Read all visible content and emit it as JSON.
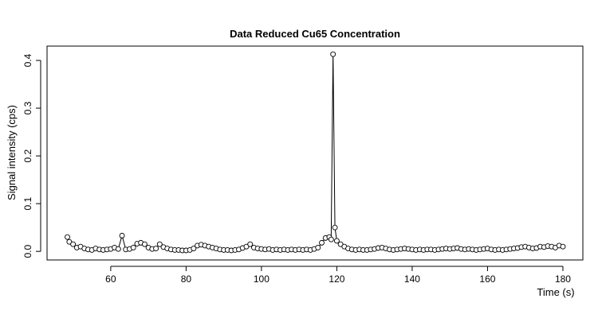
{
  "chart_data": {
    "type": "line",
    "title": "Data Reduced Cu65 Concentration",
    "x_label": "Time (s)",
    "y_label": "Signal intensity (cps)",
    "color": "#000000",
    "x": [
      48.5,
      49,
      50,
      51,
      52,
      53,
      54,
      55,
      56,
      57,
      58,
      59,
      60,
      61,
      62,
      63,
      64,
      65,
      66,
      67,
      68,
      69,
      70,
      71,
      72,
      73,
      74,
      75,
      76,
      77,
      78,
      79,
      80,
      81,
      82,
      83,
      84,
      85,
      86,
      87,
      88,
      89,
      90,
      91,
      92,
      93,
      94,
      95,
      96,
      97,
      98,
      99,
      100,
      101,
      102,
      103,
      104,
      105,
      106,
      107,
      108,
      109,
      110,
      111,
      112,
      113,
      114,
      115,
      116,
      117,
      118,
      118.5,
      119,
      119.5,
      120,
      121,
      122,
      123,
      124,
      125,
      126,
      127,
      128,
      129,
      130,
      131,
      132,
      133,
      134,
      135,
      136,
      137,
      138,
      139,
      140,
      141,
      142,
      143,
      144,
      145,
      146,
      147,
      148,
      149,
      150,
      151,
      152,
      153,
      154,
      155,
      156,
      157,
      158,
      159,
      160,
      161,
      162,
      163,
      164,
      165,
      166,
      167,
      168,
      169,
      170,
      171,
      172,
      173,
      174,
      175,
      176,
      177,
      178,
      179,
      180
    ],
    "values": [
      0.03,
      0.02,
      0.015,
      0.008,
      0.01,
      0.006,
      0.004,
      0.003,
      0.006,
      0.004,
      0.003,
      0.004,
      0.005,
      0.008,
      0.005,
      0.033,
      0.004,
      0.005,
      0.008,
      0.016,
      0.018,
      0.015,
      0.008,
      0.005,
      0.006,
      0.015,
      0.009,
      0.006,
      0.004,
      0.003,
      0.003,
      0.002,
      0.002,
      0.003,
      0.006,
      0.012,
      0.014,
      0.012,
      0.01,
      0.008,
      0.006,
      0.004,
      0.003,
      0.003,
      0.002,
      0.003,
      0.004,
      0.007,
      0.01,
      0.015,
      0.008,
      0.006,
      0.005,
      0.004,
      0.005,
      0.003,
      0.004,
      0.003,
      0.004,
      0.003,
      0.004,
      0.003,
      0.004,
      0.003,
      0.004,
      0.003,
      0.005,
      0.008,
      0.018,
      0.028,
      0.03,
      0.025,
      0.413,
      0.05,
      0.022,
      0.015,
      0.01,
      0.006,
      0.004,
      0.003,
      0.004,
      0.003,
      0.003,
      0.004,
      0.005,
      0.007,
      0.008,
      0.006,
      0.004,
      0.003,
      0.004,
      0.005,
      0.006,
      0.005,
      0.004,
      0.003,
      0.004,
      0.003,
      0.004,
      0.004,
      0.003,
      0.004,
      0.005,
      0.006,
      0.005,
      0.006,
      0.007,
      0.005,
      0.004,
      0.005,
      0.004,
      0.003,
      0.004,
      0.005,
      0.006,
      0.004,
      0.003,
      0.004,
      0.003,
      0.004,
      0.005,
      0.006,
      0.007,
      0.009,
      0.01,
      0.008,
      0.006,
      0.007,
      0.01,
      0.009,
      0.011,
      0.01,
      0.008,
      0.012,
      0.01
    ],
    "xlim": [
      43.1,
      185.3
    ],
    "ylim": [
      -0.018,
      0.43
    ],
    "xticks": [
      60,
      80,
      100,
      120,
      140,
      160,
      180
    ],
    "yticks": [
      {
        "value": 0,
        "label": "0.0"
      },
      0.1,
      0.2,
      0.3,
      0.4
    ]
  }
}
